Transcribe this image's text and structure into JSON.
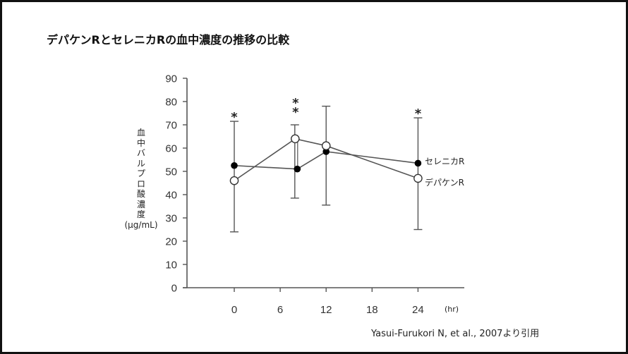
{
  "title": "デパケンRとセレニカRの血中濃度の推移の比較",
  "citation": "Yasui-Furukori N, et al., 2007より引用",
  "y_axis_label_chars": [
    "血",
    "中",
    "バ",
    "ル",
    "プ",
    "ロ",
    "酸",
    "濃",
    "度"
  ],
  "y_axis_unit": "(μg/mL)",
  "x_axis_unit": "(hr)",
  "colors": {
    "axis": "#555555",
    "line": "#555555",
    "filled_marker": "#000000",
    "open_marker_fill": "#ffffff",
    "border": "#111111"
  },
  "chart_data": {
    "type": "line",
    "title": "デパケンRとセレニカRの血中濃度の推移の比較",
    "xlabel": "(hr)",
    "ylabel": "血中バルプロ酸濃度 (μg/mL)",
    "x_ticks": [
      0,
      6,
      12,
      18,
      24
    ],
    "y_ticks": [
      0,
      10,
      20,
      30,
      40,
      50,
      60,
      70,
      80,
      90
    ],
    "ylim": [
      0,
      90
    ],
    "xlim": [
      -6,
      30
    ],
    "grid": false,
    "legend_position": "inline-right",
    "series": [
      {
        "name": "セレニカR",
        "marker": "filled-circle",
        "x": [
          0,
          8,
          12,
          24
        ],
        "values": [
          52.5,
          51,
          58.5,
          53.5
        ]
      },
      {
        "name": "デパケンR",
        "marker": "open-circle",
        "x": [
          0,
          8,
          12,
          24
        ],
        "values": [
          46,
          64,
          61,
          47
        ]
      }
    ],
    "error_bars": [
      {
        "x": 0,
        "upper": 71.5,
        "lower": 24
      },
      {
        "x": 8,
        "upper": 70,
        "lower": 38.5
      },
      {
        "x": 12,
        "upper": 78,
        "lower": 35.5
      },
      {
        "x": 24,
        "upper": 73,
        "lower": 25
      }
    ],
    "annotations": [
      {
        "x": 0,
        "text": "*"
      },
      {
        "x": 8,
        "text": "**"
      },
      {
        "x": 24,
        "text": "*"
      }
    ]
  }
}
